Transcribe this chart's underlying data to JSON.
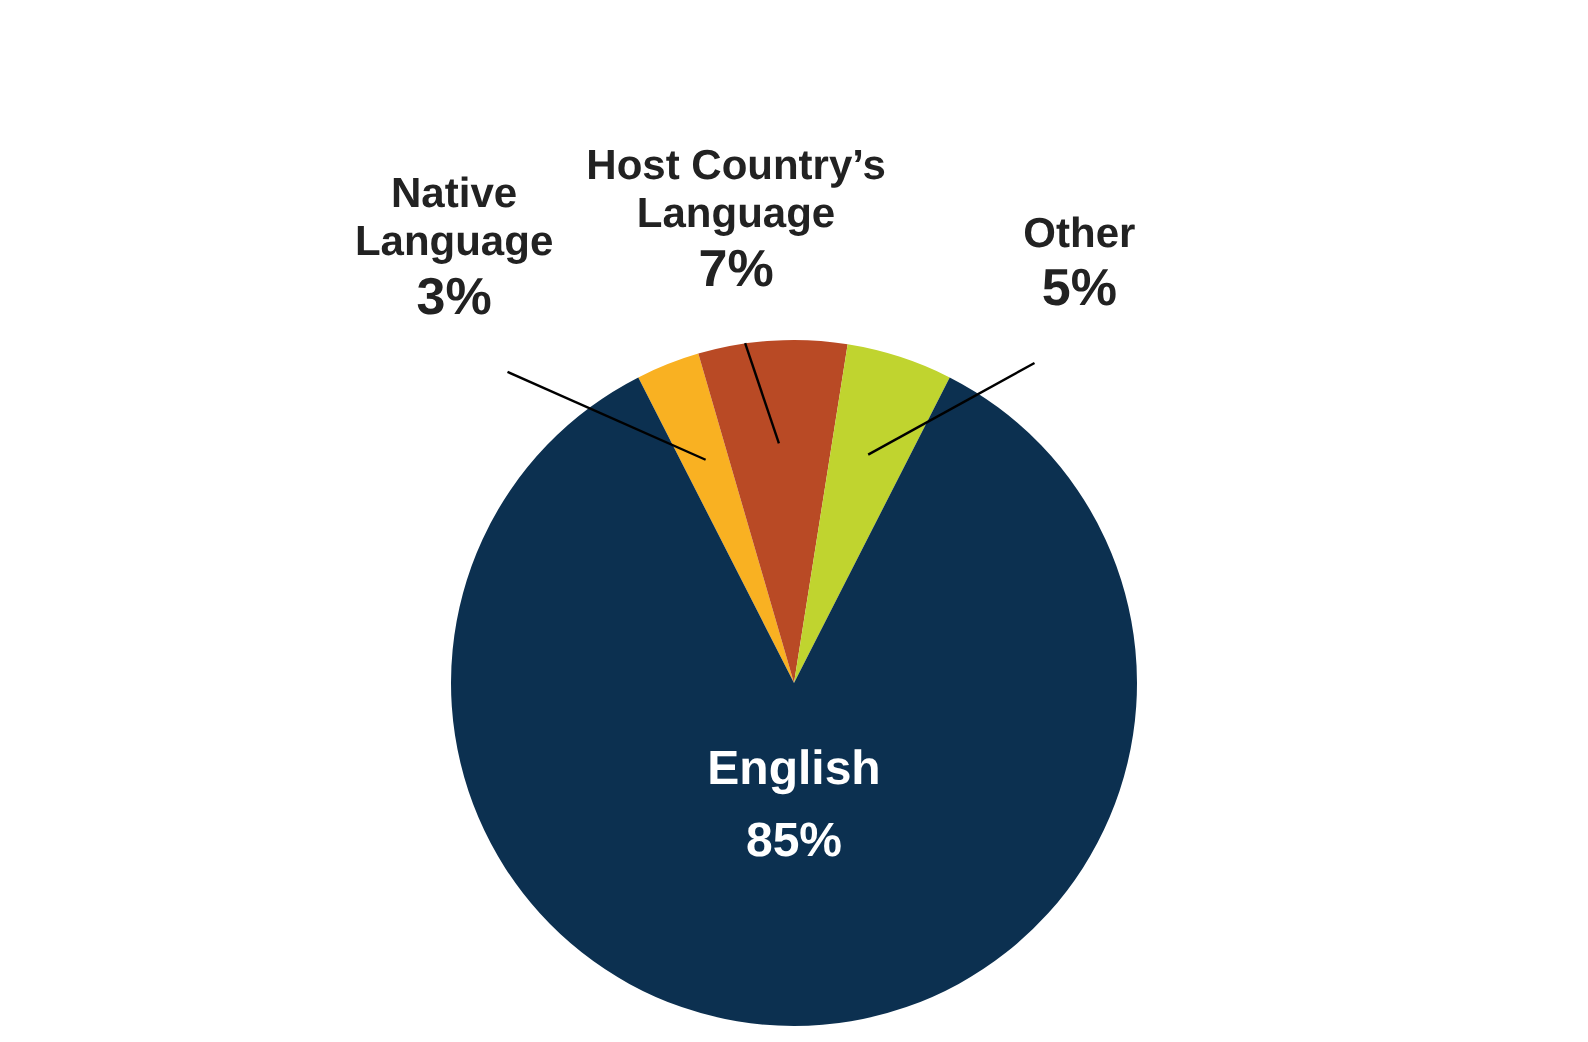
{
  "chart_data": {
    "type": "pie",
    "categories": [
      "Native Language",
      "Host Country’s Language",
      "Other",
      "English"
    ],
    "values": [
      3,
      7,
      5,
      85
    ],
    "colors": [
      "#f9b122",
      "#b94a25",
      "#c0d42f",
      "#0c3050"
    ],
    "value_labels": [
      "3%",
      "7%",
      "5%",
      "85%"
    ],
    "legend": false
  }
}
